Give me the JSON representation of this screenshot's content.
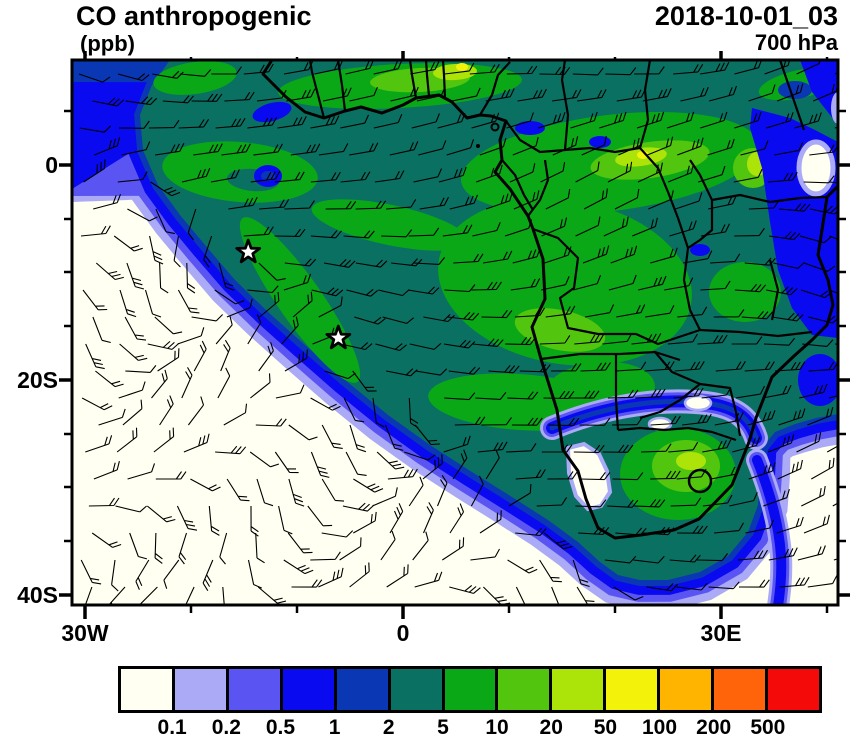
{
  "header": {
    "title": "CO anthropogenic",
    "units": "(ppb)",
    "datetime": "2018-10-01_03",
    "level": "700 hPa"
  },
  "axes": {
    "y_ticks": [
      {
        "label": "0",
        "y": 165,
        "major": true
      },
      {
        "label": "20S",
        "y": 380,
        "major": true
      },
      {
        "label": "40S",
        "y": 595,
        "major": true
      },
      {
        "y": 111
      },
      {
        "y": 219
      },
      {
        "y": 272
      },
      {
        "y": 326
      },
      {
        "y": 434
      },
      {
        "y": 487
      },
      {
        "y": 541
      }
    ],
    "x_ticks": [
      {
        "label": "30W",
        "x": 85,
        "major": true
      },
      {
        "label": "0",
        "x": 403,
        "major": true
      },
      {
        "label": "30E",
        "x": 721,
        "major": true
      },
      {
        "x": 191
      },
      {
        "x": 297
      },
      {
        "x": 509
      },
      {
        "x": 615
      },
      {
        "x": 827
      }
    ]
  },
  "chart_data": {
    "type": "heatmap",
    "title": "CO anthropogenic",
    "units": "ppb",
    "datetime": "2018-10-01_03",
    "pressure_level": "700 hPa",
    "projection": "lat-lon map of Africa and the South Atlantic / SW Indian Ocean",
    "lon_range_deg": [
      -31,
      41
    ],
    "lat_range_deg": [
      -41,
      10
    ],
    "x_tick_labels": [
      "30W",
      "0",
      "30E"
    ],
    "y_tick_labels": [
      "0",
      "20S",
      "40S"
    ],
    "colorbar": {
      "levels": [
        0.1,
        0.2,
        0.5,
        1,
        2,
        5,
        10,
        20,
        50,
        100,
        200,
        500
      ],
      "labels": [
        "0.1",
        "0.2",
        "0.5",
        "1",
        "2",
        "5",
        "10",
        "20",
        "50",
        "100",
        "200",
        "500"
      ],
      "colors": [
        "#FFFFF2",
        "#AAAAF6",
        "#5A55F2",
        "#0A0AF0",
        "#0A38B4",
        "#0A7062",
        "#0AA816",
        "#52C60E",
        "#ACE40A",
        "#F2F20A",
        "#FFB400",
        "#FF640A",
        "#F50A0A"
      ]
    },
    "overlays": {
      "wind_barbs": true,
      "coastlines": true,
      "country_borders": true,
      "markers": [
        {
          "shape": "star",
          "lon": -14.6,
          "lat": -8.1
        },
        {
          "shape": "star",
          "lon": -6.1,
          "lat": -16.1
        }
      ]
    },
    "features": [
      "CO plume of 2-20 ppb covering central Africa, the Gulf of Guinea and the tropical Atlantic",
      "clean air below 0.1 ppb over the subtropical South Atlantic and SW Indian Ocean",
      "secondary 5-20 ppb plume over eastern South Africa ringed by 0.2-1 ppb gradient",
      "low CO pocket along the East African coast near the right edge"
    ]
  }
}
